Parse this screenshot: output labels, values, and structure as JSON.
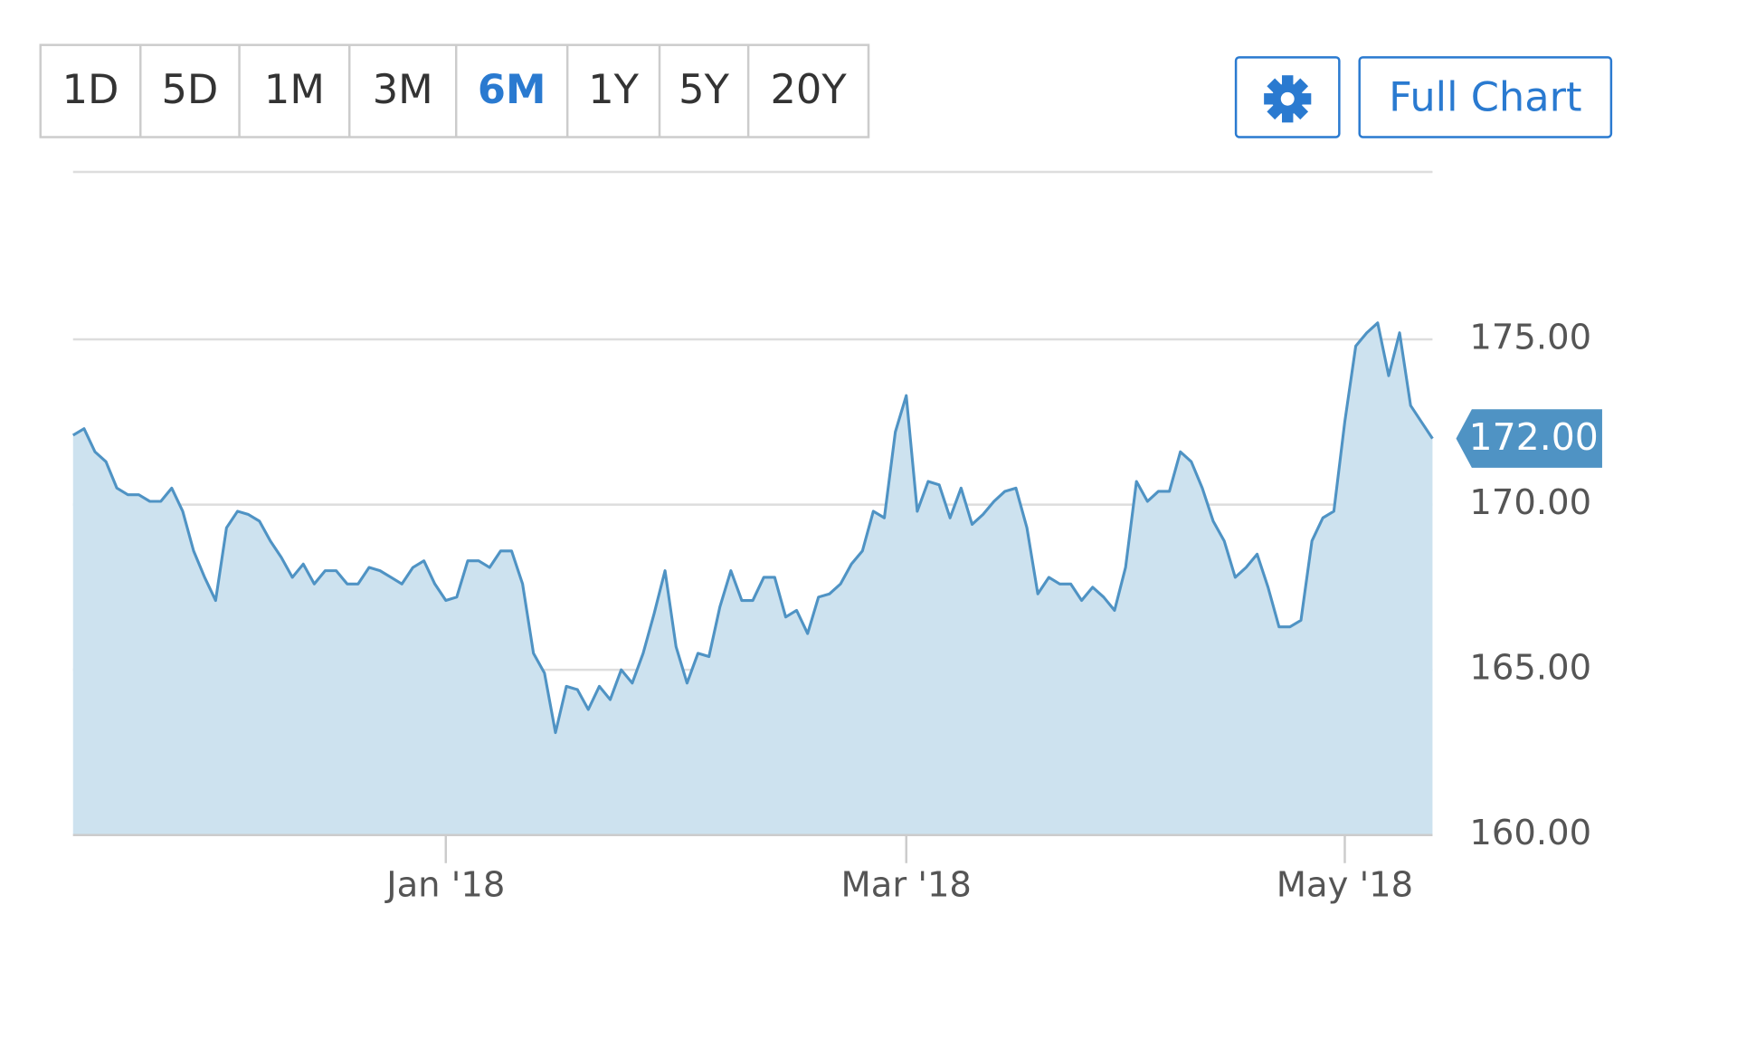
{
  "toolbar": {
    "ranges": [
      "1D",
      "5D",
      "1M",
      "3M",
      "6M",
      "1Y",
      "5Y",
      "20Y"
    ],
    "selected": "6M",
    "full_chart": "Full Chart"
  },
  "chart_data": {
    "type": "area",
    "color": "#4f93c4",
    "fill": "#cde2ef",
    "categories": [
      null,
      null,
      null,
      null,
      null,
      null,
      null,
      null,
      null,
      null,
      null,
      null,
      null,
      null,
      null,
      null,
      null,
      null,
      null,
      null,
      null,
      null,
      null,
      null,
      null,
      null,
      null,
      null,
      null,
      null,
      null,
      null,
      null,
      null,
      "Jan '18",
      null,
      null,
      null,
      null,
      null,
      null,
      null,
      null,
      null,
      null,
      null,
      null,
      null,
      null,
      null,
      null,
      null,
      null,
      null,
      null,
      null,
      null,
      null,
      null,
      null,
      null,
      null,
      null,
      null,
      null,
      null,
      null,
      null,
      null,
      null,
      null,
      null,
      null,
      null,
      null,
      null,
      "Mar '18",
      null,
      null,
      null,
      null,
      null,
      null,
      null,
      null,
      null,
      null,
      null,
      null,
      null,
      null,
      null,
      null,
      null,
      null,
      null,
      null,
      null,
      null,
      null,
      null,
      null,
      null,
      null,
      null,
      null,
      null,
      null,
      null,
      null,
      null,
      null,
      null,
      null,
      null,
      null,
      "May '18",
      null,
      null,
      null,
      null,
      null,
      null,
      null,
      null
    ],
    "values": [
      172.1,
      172.3,
      171.6,
      171.3,
      170.5,
      170.3,
      170.3,
      170.1,
      170.1,
      170.5,
      169.8,
      168.6,
      167.8,
      167.1,
      169.3,
      169.8,
      169.7,
      169.5,
      168.9,
      168.4,
      167.8,
      168.2,
      167.6,
      168.0,
      168.0,
      167.6,
      167.6,
      168.1,
      168.0,
      167.8,
      167.6,
      168.1,
      168.3,
      167.6,
      167.1,
      167.2,
      168.3,
      168.3,
      168.1,
      168.6,
      168.6,
      167.6,
      165.5,
      164.9,
      163.1,
      164.5,
      164.4,
      163.8,
      164.5,
      164.1,
      165.0,
      164.6,
      165.5,
      166.7,
      168.0,
      165.7,
      164.6,
      165.5,
      165.4,
      166.9,
      168.0,
      167.1,
      167.1,
      167.8,
      167.8,
      166.6,
      166.8,
      166.1,
      167.2,
      167.3,
      167.6,
      168.2,
      168.6,
      169.8,
      169.6,
      172.2,
      173.3,
      169.8,
      170.7,
      170.6,
      169.6,
      170.5,
      169.4,
      169.7,
      170.1,
      170.4,
      170.5,
      169.3,
      167.3,
      167.8,
      167.6,
      167.6,
      167.1,
      167.5,
      167.2,
      166.8,
      168.1,
      170.7,
      170.1,
      170.4,
      170.4,
      171.6,
      171.3,
      170.5,
      169.5,
      168.9,
      167.8,
      168.1,
      168.5,
      167.5,
      166.3,
      166.3,
      166.5,
      168.9,
      169.6,
      169.8,
      172.5,
      174.8,
      175.2,
      175.5,
      173.9,
      175.2,
      173.0,
      172.5,
      172.0
    ],
    "ylim": [
      160,
      180
    ],
    "yticks": [
      {
        "value": 160,
        "label": "160.00"
      },
      {
        "value": 165,
        "label": "165.00"
      },
      {
        "value": 170,
        "label": "170.00"
      },
      {
        "value": 175,
        "label": "175.00"
      }
    ],
    "grid": true,
    "current_price": {
      "value": 172,
      "label": "172.00"
    }
  }
}
